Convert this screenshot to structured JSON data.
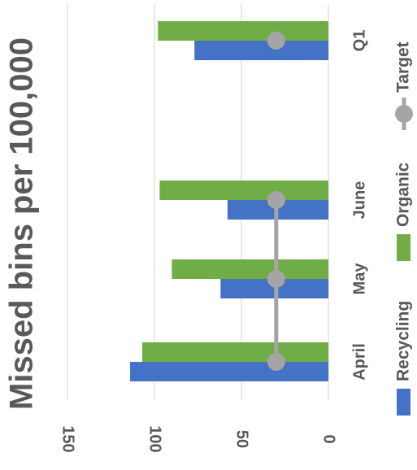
{
  "chart_data": {
    "type": "bar",
    "orientation": "rotated-90-clockwise",
    "title": "Missed bins per 100,000",
    "categories": [
      "April",
      "May",
      "June",
      "Q1"
    ],
    "category_gap_after": [
      "",
      "",
      "",
      ""
    ],
    "series": [
      {
        "name": "Recycling",
        "type": "bar",
        "color": "#4472C4",
        "values": [
          114,
          62,
          58,
          77
        ]
      },
      {
        "name": "Organic",
        "type": "bar",
        "color": "#70AD47",
        "values": [
          107,
          90,
          97,
          98
        ]
      },
      {
        "name": "Target",
        "type": "line-marker",
        "color": "#A5A5A5",
        "values": [
          30,
          30,
          30,
          30
        ]
      }
    ],
    "value_axis": {
      "min": 0,
      "max": 150,
      "ticks": [
        0,
        50,
        100,
        150
      ],
      "tick_labels": [
        "0",
        "50",
        "100",
        "150"
      ]
    },
    "grid": true,
    "legend_position": "bottom",
    "legend": [
      "Recycling",
      "Organic",
      "Target"
    ]
  }
}
